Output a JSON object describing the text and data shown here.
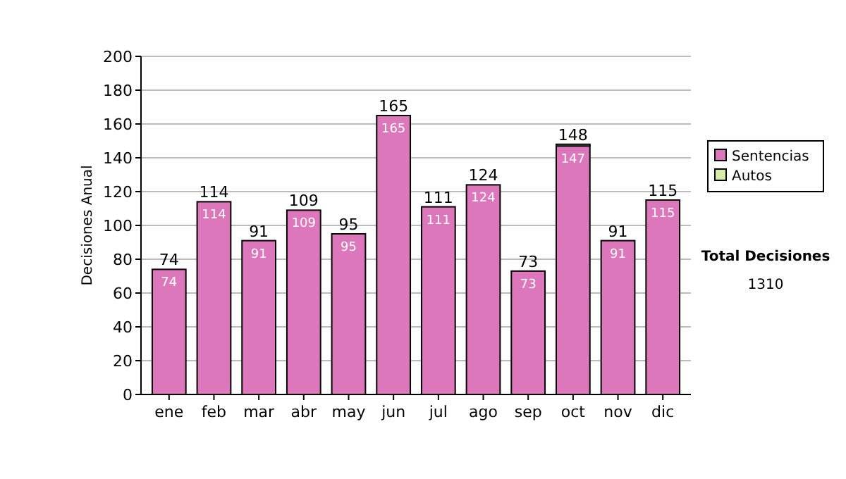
{
  "chart_data": {
    "type": "bar",
    "stacked": true,
    "ylabel": "Decisiones Anual",
    "categories": [
      "ene",
      "feb",
      "mar",
      "abr",
      "may",
      "jun",
      "jul",
      "ago",
      "sep",
      "oct",
      "nov",
      "dic"
    ],
    "series": [
      {
        "name": "Sentencias",
        "color": "#dd77bb",
        "values": [
          74,
          114,
          91,
          109,
          95,
          165,
          111,
          124,
          73,
          147,
          91,
          115
        ],
        "value_labels": [
          "74",
          "114",
          "91",
          "109",
          "95",
          "165",
          "111",
          "124",
          "73",
          "147",
          "91",
          "115"
        ]
      },
      {
        "name": "Autos",
        "color": "#d4eca4",
        "values": [
          0,
          0,
          0,
          0,
          0,
          0,
          0,
          0,
          0,
          1,
          0,
          0
        ]
      }
    ],
    "totals": [
      "74",
      "114",
      "91",
      "109",
      "95",
      "165",
      "111",
      "124",
      "73",
      "148",
      "91",
      "115"
    ],
    "ylim": [
      0,
      200
    ],
    "yticks": [
      0,
      20,
      40,
      60,
      80,
      100,
      120,
      140,
      160,
      180,
      200
    ],
    "grid": "y",
    "legend": "right",
    "annotations": [
      "Total Decisiones",
      "1310"
    ]
  }
}
